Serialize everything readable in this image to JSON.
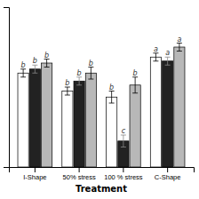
{
  "chart_data": {
    "type": "bar",
    "xlabel": "Treatment",
    "categories": [
      "I-Shape",
      "50% stress",
      "100 % stress",
      "C-Shape"
    ],
    "series": [
      {
        "color": "white",
        "values": [
          0.72,
          0.63,
          0.6,
          0.8
        ],
        "errors": [
          0.02,
          0.02,
          0.03,
          0.02
        ],
        "annotations": [
          "b",
          "b",
          "b",
          "a"
        ]
      },
      {
        "color": "#222222",
        "values": [
          0.74,
          0.68,
          0.38,
          0.78
        ],
        "errors": [
          0.02,
          0.02,
          0.03,
          0.02
        ],
        "annotations": [
          "b",
          "b",
          "c",
          "a"
        ]
      },
      {
        "color": "#b8b8b8",
        "values": [
          0.77,
          0.72,
          0.66,
          0.85
        ],
        "errors": [
          0.02,
          0.03,
          0.04,
          0.02
        ],
        "annotations": [
          "b",
          "b",
          "b",
          "a"
        ]
      }
    ],
    "ylim": [
      0.25,
      1.05
    ],
    "yticks": [],
    "tick_labels": "x",
    "grid": false
  }
}
